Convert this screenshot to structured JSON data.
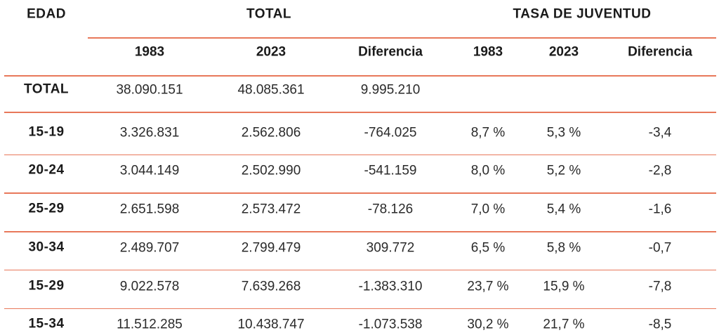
{
  "headers": {
    "edad": "EDAD",
    "total": "TOTAL",
    "tasa": "TASA DE JUVENTUD"
  },
  "subheaders": [
    "1983",
    "2023",
    "Diferencia",
    "1983",
    "2023",
    "Diferencia"
  ],
  "colors": {
    "rule": "#e8785a",
    "text": "#1f1f1f"
  },
  "chart_data": {
    "type": "table",
    "columns": [
      "EDAD",
      "TOTAL 1983",
      "TOTAL 2023",
      "TOTAL Diferencia",
      "TASA DE JUVENTUD 1983",
      "TASA DE JUVENTUD 2023",
      "TASA DE JUVENTUD Diferencia"
    ],
    "rows": [
      {
        "label": "TOTAL",
        "values": [
          "38.090.151",
          "48.085.361",
          "9.995.210",
          "",
          "",
          ""
        ]
      },
      {
        "label": "15-19",
        "values": [
          "3.326.831",
          "2.562.806",
          "-764.025",
          "8,7 %",
          "5,3 %",
          "-3,4"
        ]
      },
      {
        "label": "20-24",
        "values": [
          "3.044.149",
          "2.502.990",
          "-541.159",
          "8,0 %",
          "5,2 %",
          "-2,8"
        ]
      },
      {
        "label": "25-29",
        "values": [
          "2.651.598",
          "2.573.472",
          "-78.126",
          "7,0 %",
          "5,4 %",
          "-1,6"
        ]
      },
      {
        "label": "30-34",
        "values": [
          "2.489.707",
          "2.799.479",
          "309.772",
          "6,5 %",
          "5,8 %",
          "-0,7"
        ]
      },
      {
        "label": "15-29",
        "values": [
          "9.022.578",
          "7.639.268",
          "-1.383.310",
          "23,7 %",
          "15,9 %",
          "-7,8"
        ]
      },
      {
        "label": "15-34",
        "values": [
          "11.512.285",
          "10.438.747",
          "-1.073.538",
          "30,2 %",
          "21,7 %",
          "-8,5"
        ]
      }
    ]
  }
}
